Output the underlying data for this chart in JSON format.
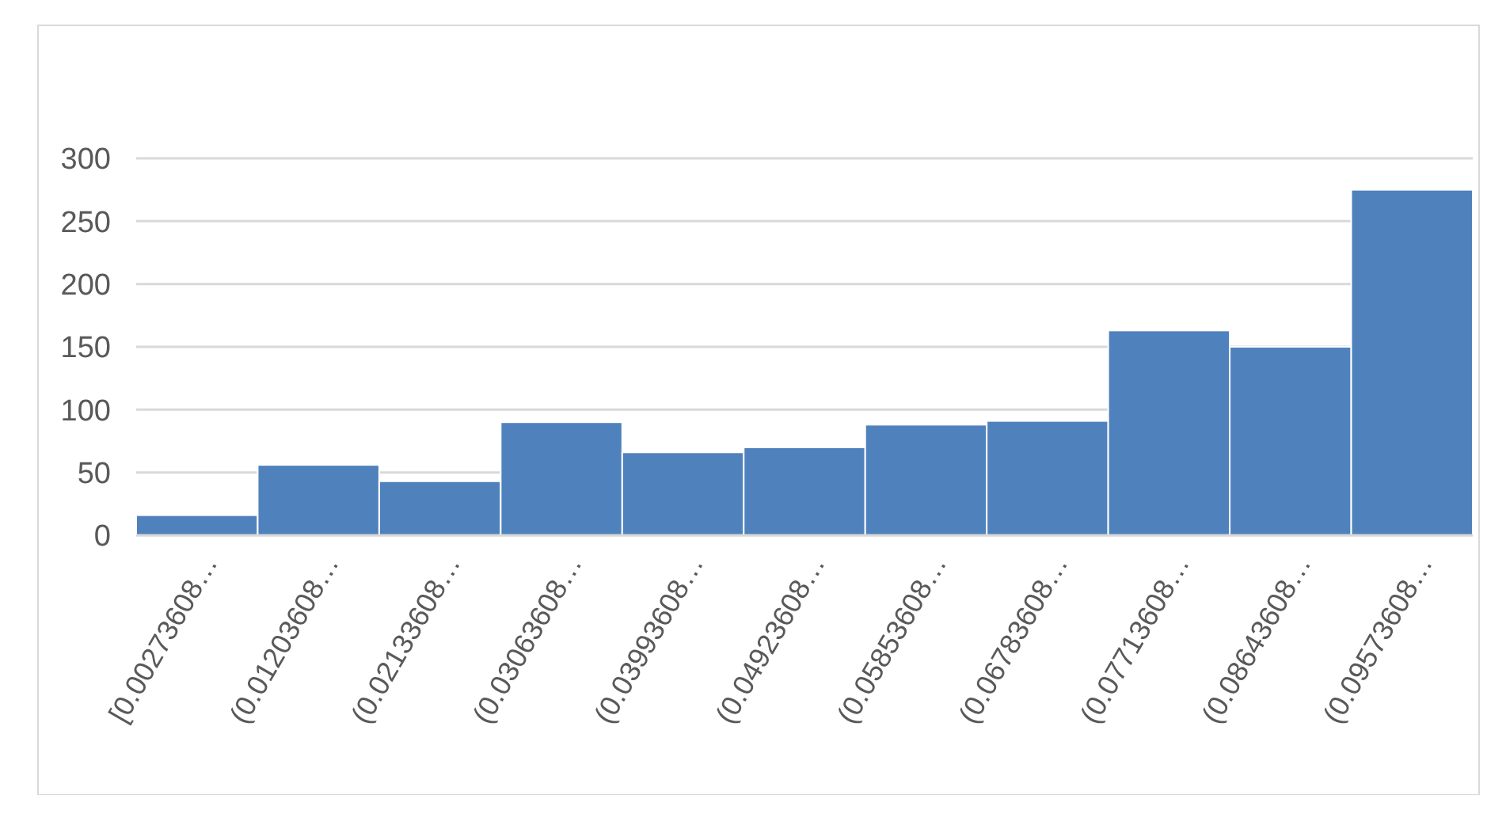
{
  "chart_data": {
    "type": "bar",
    "categories": [
      "[0.00273608…",
      "(0.01203608…",
      "(0.02133608…",
      "(0.03063608…",
      "(0.03993608…",
      "(0.04923608…",
      "(0.05853608…",
      "(0.06783608…",
      "(0.07713608…",
      "(0.08643608…",
      "(0.09573608…"
    ],
    "values": [
      16,
      56,
      43,
      90,
      66,
      70,
      88,
      91,
      163,
      150,
      275
    ],
    "color": "#4f81bd",
    "ylim": [
      0,
      300
    ],
    "yticks": [
      0,
      50,
      100,
      150,
      200,
      250,
      300
    ],
    "grid": "y"
  }
}
